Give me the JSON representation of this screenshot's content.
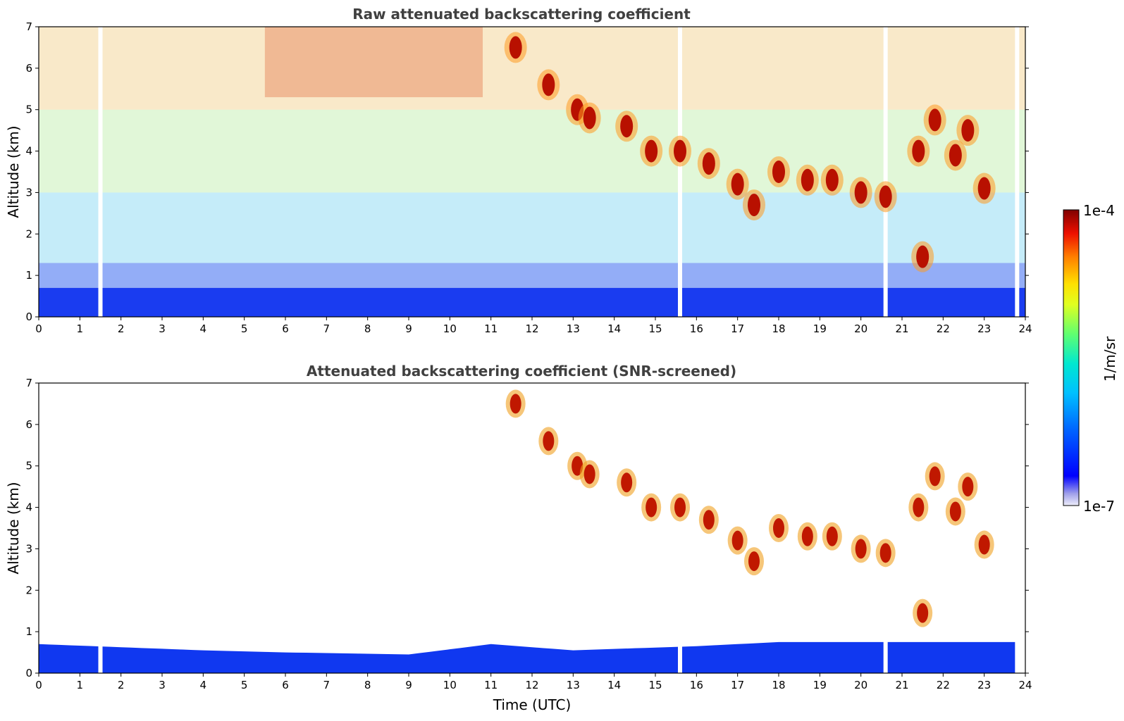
{
  "chart_data": [
    {
      "type": "heatmap",
      "title": "Raw attenuated backscattering coefficient",
      "xlabel": "",
      "ylabel": "Altitude (km)",
      "xlim": [
        0,
        24
      ],
      "ylim": [
        0,
        7
      ],
      "xticks": [
        "0",
        "1",
        "2",
        "3",
        "4",
        "5",
        "6",
        "7",
        "8",
        "9",
        "10",
        "11",
        "12",
        "13",
        "14",
        "15",
        "16",
        "17",
        "18",
        "19",
        "20",
        "21",
        "22",
        "23",
        "24"
      ],
      "yticks": [
        "0",
        "1",
        "2",
        "3",
        "4",
        "5",
        "6",
        "7"
      ],
      "boundary_layer_top_km": [
        [
          0,
          0.7
        ],
        [
          4,
          0.55
        ],
        [
          6,
          0.5
        ],
        [
          9,
          0.45
        ],
        [
          11,
          0.7
        ],
        [
          13,
          0.55
        ],
        [
          16,
          0.65
        ],
        [
          18,
          0.75
        ],
        [
          24,
          0.75
        ]
      ],
      "missing_profiles_utc": [
        1.5,
        15.6,
        20.6,
        23.8
      ],
      "cloud_features": [
        {
          "t": 11.6,
          "z": 6.5,
          "level": "high"
        },
        {
          "t": 12.4,
          "z": 5.6,
          "level": "high"
        },
        {
          "t": 13.1,
          "z": 5.0,
          "level": "high"
        },
        {
          "t": 13.4,
          "z": 4.8,
          "level": "high"
        },
        {
          "t": 14.3,
          "z": 4.6,
          "level": "high"
        },
        {
          "t": 14.9,
          "z": 4.0,
          "level": "high"
        },
        {
          "t": 15.6,
          "z": 4.0,
          "level": "high"
        },
        {
          "t": 16.3,
          "z": 3.7,
          "level": "high"
        },
        {
          "t": 17.0,
          "z": 3.2,
          "level": "high"
        },
        {
          "t": 17.4,
          "z": 2.7,
          "level": "high"
        },
        {
          "t": 18.0,
          "z": 3.5,
          "level": "high"
        },
        {
          "t": 18.7,
          "z": 3.3,
          "level": "high"
        },
        {
          "t": 19.3,
          "z": 3.3,
          "level": "high"
        },
        {
          "t": 20.0,
          "z": 3.0,
          "level": "high"
        },
        {
          "t": 20.6,
          "z": 2.9,
          "level": "high"
        },
        {
          "t": 21.4,
          "z": 4.0,
          "level": "high"
        },
        {
          "t": 22.3,
          "z": 3.9,
          "level": "high"
        },
        {
          "t": 23.0,
          "z": 3.1,
          "level": "high"
        },
        {
          "t": 21.5,
          "z": 1.45,
          "level": "high"
        },
        {
          "t": 21.8,
          "z": 4.75,
          "level": "high"
        },
        {
          "t": 22.6,
          "z": 4.5,
          "level": "high"
        }
      ]
    },
    {
      "type": "heatmap",
      "title": "Attenuated backscattering coefficient (SNR-screened)",
      "xlabel": "Time (UTC)",
      "ylabel": "Altitude (km)",
      "xlim": [
        0,
        24
      ],
      "ylim": [
        0,
        7
      ],
      "xticks": [
        "0",
        "1",
        "2",
        "3",
        "4",
        "5",
        "6",
        "7",
        "8",
        "9",
        "10",
        "11",
        "12",
        "13",
        "14",
        "15",
        "16",
        "17",
        "18",
        "19",
        "20",
        "21",
        "22",
        "23",
        "24"
      ],
      "yticks": [
        "0",
        "1",
        "2",
        "3",
        "4",
        "5",
        "6",
        "7"
      ]
    }
  ],
  "colorbar": {
    "label": "1/m/sr",
    "max_label": "1e-4",
    "min_label": "1e-7",
    "colormap": [
      "#e6e6f8",
      "#9a9ae6",
      "#0000ff",
      "#0050ff",
      "#00a0ff",
      "#00e0e0",
      "#40ff80",
      "#c0ff40",
      "#ffff00",
      "#ffb000",
      "#ff5000",
      "#e00000",
      "#800000"
    ]
  }
}
